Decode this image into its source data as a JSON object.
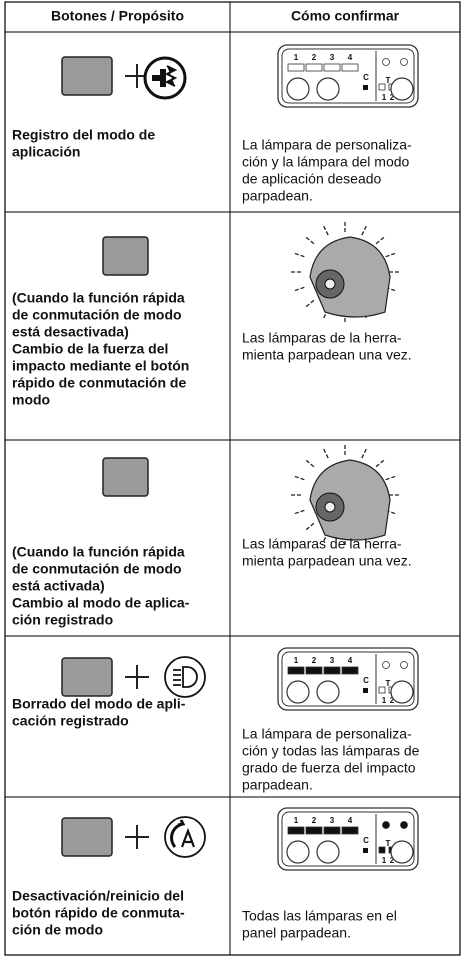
{
  "table": {
    "header": [
      "Botones / Propósito",
      "Cómo confirmar"
    ],
    "rows": [
      {
        "purpose": [
          "Registro del modo de",
          "aplicación"
        ],
        "confirm": [
          "La lámpara de personaliza-",
          "ción y la lámpara del modo",
          "de aplicación deseado",
          "parpadean."
        ]
      },
      {
        "purpose": [
          "(Cuando la función rápida",
          "de conmutación de modo",
          "está desactivada)",
          "Cambio de la fuerza del",
          "impacto mediante el botón",
          "rápido de conmutación de",
          "modo"
        ],
        "confirm": [
          "Las lámparas de la herra-",
          "mienta parpadean una vez."
        ]
      },
      {
        "purpose": [
          "(Cuando la función rápida",
          "de conmutación de modo",
          "está activada)",
          "Cambio al modo de aplica-",
          "ción registrado"
        ],
        "confirm": [
          "Las lámparas de la herra-",
          "mienta parpadean una vez."
        ]
      },
      {
        "purpose": [
          "Borrado del modo de apli-",
          "cación registrado"
        ],
        "confirm": [
          "La lámpara de personaliza-",
          "ción y todas las lámparas de",
          "grado de fuerza del impacto",
          "parpadean."
        ]
      },
      {
        "purpose": [
          "Desactivación/reinicio del",
          "botón rápido de conmuta-",
          "ción de modo"
        ],
        "confirm": [
          "Todas las lámparas en el",
          "panel parpadean."
        ]
      }
    ],
    "panel_labels": [
      "1",
      "2",
      "3",
      "4",
      "C",
      "T",
      "1",
      "2"
    ]
  }
}
